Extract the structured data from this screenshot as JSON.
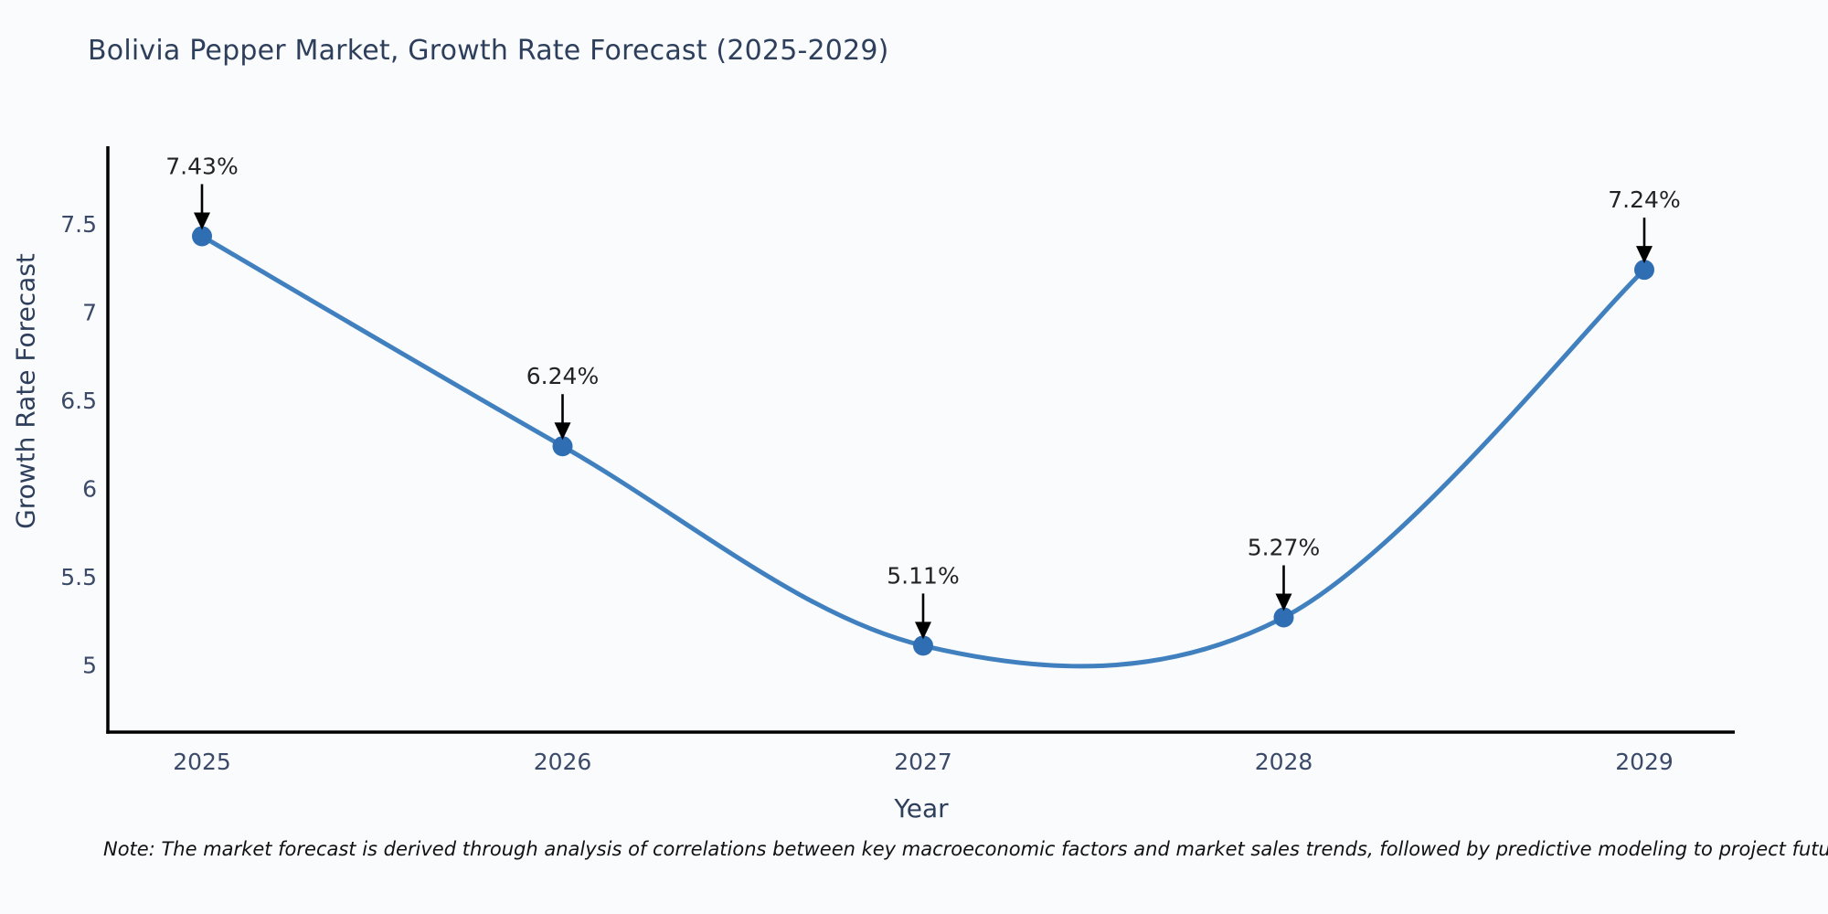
{
  "title": "Bolivia Pepper Market, Growth Rate Forecast (2025-2029)",
  "note": "Note: The market forecast is derived through analysis of correlations between key macroeconomic factors and market sales trends, followed by predictive modeling to project future sales",
  "chart_data": {
    "type": "line",
    "title": "Bolivia Pepper Market, Growth Rate Forecast (2025-2029)",
    "xlabel": "Year",
    "ylabel": "Growth Rate Forecast",
    "categories": [
      "2025",
      "2026",
      "2027",
      "2028",
      "2029"
    ],
    "values": [
      7.43,
      6.24,
      5.11,
      5.27,
      7.24
    ],
    "point_labels": [
      "7.43%",
      "6.24%",
      "5.11%",
      "5.27%",
      "7.24%"
    ],
    "yticks": [
      5,
      5.5,
      6,
      6.5,
      7,
      7.5
    ],
    "ytick_labels": [
      "5",
      "5.5",
      "6",
      "6.5",
      "7",
      "7.5"
    ],
    "ylim": [
      4.62,
      7.94
    ],
    "grid": false,
    "legend": "none",
    "smooth_spline": true,
    "line_color": "#4080bf",
    "marker_color": "#2f6eb2",
    "axis_color": "#000000",
    "arrow_color": "#000000",
    "text_color": "#2e3f5c"
  }
}
